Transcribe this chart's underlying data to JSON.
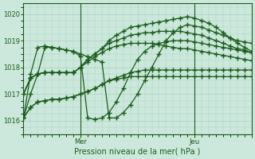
{
  "ylabel_ticks": [
    1016,
    1017,
    1018,
    1019,
    1020
  ],
  "ylim": [
    1015.5,
    1020.4
  ],
  "xlim": [
    0,
    32
  ],
  "bg_color": "#cce8dc",
  "grid_color": "#aacfbe",
  "line_color": "#1a5c1a",
  "marker": "+",
  "markersize": 4,
  "linewidth": 0.9,
  "xlabel": "Pression niveau de la mer( hPa )",
  "xtick_labels": [
    "",
    "Mer",
    "",
    "Jeu",
    ""
  ],
  "xtick_positions": [
    0,
    8,
    16,
    24,
    32
  ],
  "vline_positions": [
    8,
    24
  ],
  "series": [
    [
      1017.0,
      1017.6,
      1017.75,
      1017.8,
      1017.8,
      1017.8,
      1017.8,
      1017.8,
      1018.0,
      1018.3,
      1018.5,
      1018.7,
      1019.0,
      1019.2,
      1019.35,
      1019.5,
      1019.55,
      1019.6,
      1019.65,
      1019.7,
      1019.75,
      1019.8,
      1019.85,
      1019.9,
      1019.85,
      1019.75,
      1019.65,
      1019.5,
      1019.3,
      1019.1,
      1018.9,
      1018.75,
      1018.6
    ],
    [
      1017.0,
      1017.6,
      1017.75,
      1017.8,
      1017.8,
      1017.8,
      1017.8,
      1017.8,
      1018.0,
      1018.3,
      1018.5,
      1018.7,
      1018.9,
      1019.0,
      1019.1,
      1019.2,
      1019.25,
      1019.3,
      1019.3,
      1019.35,
      1019.35,
      1019.35,
      1019.35,
      1019.3,
      1019.25,
      1019.2,
      1019.1,
      1019.0,
      1018.9,
      1018.8,
      1018.7,
      1018.65,
      1018.55
    ],
    [
      1017.0,
      1017.6,
      1017.75,
      1017.8,
      1017.8,
      1017.8,
      1017.8,
      1017.8,
      1018.0,
      1018.2,
      1018.4,
      1018.55,
      1018.7,
      1018.8,
      1018.85,
      1018.9,
      1018.9,
      1018.9,
      1018.9,
      1018.85,
      1018.8,
      1018.75,
      1018.7,
      1018.7,
      1018.65,
      1018.6,
      1018.55,
      1018.5,
      1018.45,
      1018.4,
      1018.35,
      1018.3,
      1018.25
    ],
    [
      1016.1,
      1016.5,
      1016.7,
      1016.75,
      1016.8,
      1016.8,
      1016.85,
      1016.9,
      1017.0,
      1017.1,
      1017.2,
      1017.35,
      1017.5,
      1017.6,
      1017.7,
      1017.8,
      1017.85,
      1017.9,
      1017.9,
      1017.9,
      1017.9,
      1017.9,
      1017.9,
      1017.9,
      1017.9,
      1017.9,
      1017.9,
      1017.9,
      1017.9,
      1017.9,
      1017.9,
      1017.9,
      1017.9
    ],
    [
      1016.1,
      1016.5,
      1016.7,
      1016.75,
      1016.8,
      1016.8,
      1016.85,
      1016.9,
      1017.0,
      1017.1,
      1017.2,
      1017.35,
      1017.5,
      1017.55,
      1017.6,
      1017.65,
      1017.65,
      1017.65,
      1017.65,
      1017.65,
      1017.65,
      1017.65,
      1017.65,
      1017.65,
      1017.65,
      1017.65,
      1017.65,
      1017.65,
      1017.65,
      1017.65,
      1017.65,
      1017.65,
      1017.65
    ],
    [
      1016.1,
      1017.75,
      1018.75,
      1018.8,
      1018.75,
      1018.7,
      1018.65,
      1018.6,
      1018.5,
      1018.4,
      1018.3,
      1018.2,
      1016.1,
      1016.1,
      1016.3,
      1016.6,
      1017.0,
      1017.5,
      1018.0,
      1018.5,
      1019.0,
      1019.3,
      1019.5,
      1019.6,
      1019.55,
      1019.5,
      1019.4,
      1019.3,
      1019.2,
      1019.1,
      1019.0,
      1018.95,
      1018.9
    ],
    [
      1016.1,
      1017.0,
      1017.75,
      1018.75,
      1018.75,
      1018.7,
      1018.65,
      1018.6,
      1018.4,
      1016.1,
      1016.05,
      1016.1,
      1016.3,
      1016.7,
      1017.2,
      1017.8,
      1018.3,
      1018.6,
      1018.8,
      1018.9,
      1018.95,
      1019.0,
      1019.0,
      1019.0,
      1018.95,
      1018.9,
      1018.85,
      1018.8,
      1018.75,
      1018.7,
      1018.65,
      1018.6,
      1018.55
    ]
  ]
}
